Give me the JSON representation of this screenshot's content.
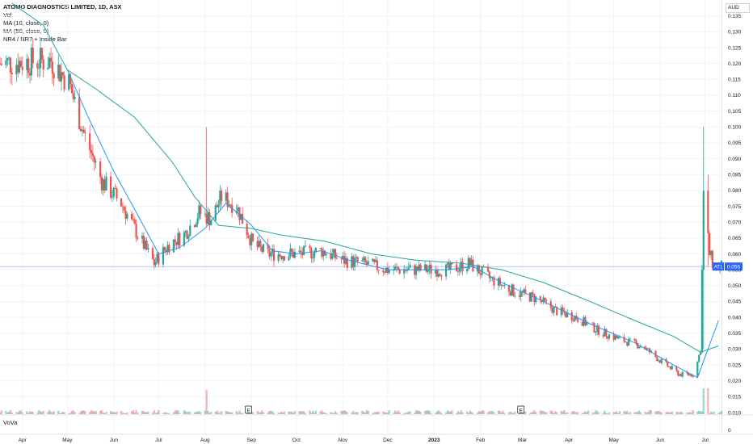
{
  "header": {
    "title": "ATOMO DIAGNOSTICS LIMITED, 1D, ASX",
    "indicators": [
      "Vol",
      "MA (10, close, 0)",
      "MA (50, close, 0)",
      "NR4 / NR7 + Inside Bar"
    ],
    "currency": "AUD"
  },
  "lower_pane": {
    "label": "VoVa",
    "tick": "0"
  },
  "price_tag": {
    "symbol": "AT1",
    "price": "0.056"
  },
  "colors": {
    "up": "#26a69a",
    "down": "#ef5350",
    "ma10": "#2196f3",
    "ma50": "#26a69a",
    "hline": "#b8bff8",
    "grid": "#f0f3fa",
    "axis_text": "#131722",
    "tag": "#2962ff"
  },
  "chart_data": {
    "type": "candlestick",
    "title": "ATOMO DIAGNOSTICS LIMITED, 1D, ASX",
    "ylim": [
      0.0095,
      0.14
    ],
    "yticks": [
      "0.135",
      "0.130",
      "0.125",
      "0.120",
      "0.115",
      "0.110",
      "0.105",
      "0.100",
      "0.095",
      "0.090",
      "0.085",
      "0.080",
      "0.075",
      "0.070",
      "0.065",
      "0.060",
      "0.055",
      "0.050",
      "0.045",
      "0.040",
      "0.035",
      "0.030",
      "0.025",
      "0.020",
      "0.015",
      "0.010"
    ],
    "xticks": [
      "Apr",
      "May",
      "Jun",
      "Jul",
      "Aug",
      "Sep",
      "Oct",
      "Nov",
      "Dec",
      "2023",
      "Feb",
      "Mar",
      "Apr",
      "May",
      "Jun",
      "Jul"
    ],
    "xdates": [
      "2022-04-01",
      "2022-05-01",
      "2022-06-01",
      "2022-07-01",
      "2022-08-01",
      "2022-09-01",
      "2022-10-01",
      "2022-11-01",
      "2022-12-01",
      "2023-01-01",
      "2023-02-01",
      "2023-03-01",
      "2023-04-01",
      "2023-05-01",
      "2023-06-01",
      "2023-07-01"
    ],
    "date_range": [
      "2022-03-17",
      "2023-07-12"
    ],
    "earnings_markers": [
      {
        "date": "2022-08-30",
        "label": "E"
      },
      {
        "date": "2023-02-28",
        "label": "E"
      }
    ],
    "horizontal_line": 0.056,
    "last_price": 0.056,
    "close_series": [
      {
        "date": "2022-03-17",
        "close": 0.12
      },
      {
        "date": "2022-04-20",
        "close": 0.121
      },
      {
        "date": "2022-05-02",
        "close": 0.114
      },
      {
        "date": "2022-05-12",
        "close": 0.098
      },
      {
        "date": "2022-05-24",
        "close": 0.083
      },
      {
        "date": "2022-06-06",
        "close": 0.076
      },
      {
        "date": "2022-06-17",
        "close": 0.066
      },
      {
        "date": "2022-06-28",
        "close": 0.057
      },
      {
        "date": "2022-07-08",
        "close": 0.063
      },
      {
        "date": "2022-07-18",
        "close": 0.066
      },
      {
        "date": "2022-07-28",
        "close": 0.073
      },
      {
        "date": "2022-08-05",
        "close": 0.071
      },
      {
        "date": "2022-08-12",
        "close": 0.078
      },
      {
        "date": "2022-08-22",
        "close": 0.075
      },
      {
        "date": "2022-09-02",
        "close": 0.063
      },
      {
        "date": "2022-09-12",
        "close": 0.06
      },
      {
        "date": "2022-10-03",
        "close": 0.06
      },
      {
        "date": "2022-10-18",
        "close": 0.061
      },
      {
        "date": "2022-11-01",
        "close": 0.058
      },
      {
        "date": "2022-11-15",
        "close": 0.057
      },
      {
        "date": "2022-12-01",
        "close": 0.055
      },
      {
        "date": "2022-12-15",
        "close": 0.055
      },
      {
        "date": "2023-01-12",
        "close": 0.055
      },
      {
        "date": "2023-01-24",
        "close": 0.057
      },
      {
        "date": "2023-02-08",
        "close": 0.052
      },
      {
        "date": "2023-02-24",
        "close": 0.048
      },
      {
        "date": "2023-03-10",
        "close": 0.046
      },
      {
        "date": "2023-03-24",
        "close": 0.042
      },
      {
        "date": "2023-04-06",
        "close": 0.04
      },
      {
        "date": "2023-04-20",
        "close": 0.036
      },
      {
        "date": "2023-05-05",
        "close": 0.033
      },
      {
        "date": "2023-05-20",
        "close": 0.031
      },
      {
        "date": "2023-06-02",
        "close": 0.026
      },
      {
        "date": "2023-06-14",
        "close": 0.022
      },
      {
        "date": "2023-06-24",
        "close": 0.022
      },
      {
        "date": "2023-06-28",
        "close": 0.03
      },
      {
        "date": "2023-06-30",
        "close": 0.079
      },
      {
        "date": "2023-07-04",
        "close": 0.06
      },
      {
        "date": "2023-07-07",
        "close": 0.056
      }
    ],
    "spikes": [
      {
        "date": "2022-08-02",
        "high": 0.1,
        "low": 0.075
      },
      {
        "date": "2023-06-30",
        "high": 0.1,
        "low": 0.03
      },
      {
        "date": "2023-07-03",
        "high": 0.085,
        "low": 0.056
      }
    ],
    "series": [
      {
        "name": "MA (10, close, 0)",
        "values": [
          {
            "date": "2022-05-01",
            "value": 0.118
          },
          {
            "date": "2022-05-15",
            "value": 0.103
          },
          {
            "date": "2022-06-01",
            "value": 0.086
          },
          {
            "date": "2022-06-15",
            "value": 0.074
          },
          {
            "date": "2022-07-01",
            "value": 0.06
          },
          {
            "date": "2022-07-15",
            "value": 0.062
          },
          {
            "date": "2022-08-01",
            "value": 0.068
          },
          {
            "date": "2022-08-15",
            "value": 0.076
          },
          {
            "date": "2022-09-01",
            "value": 0.069
          },
          {
            "date": "2022-09-15",
            "value": 0.061
          },
          {
            "date": "2022-10-01",
            "value": 0.06
          },
          {
            "date": "2022-10-18",
            "value": 0.061
          },
          {
            "date": "2022-11-05",
            "value": 0.058
          },
          {
            "date": "2022-12-01",
            "value": 0.055
          },
          {
            "date": "2023-01-10",
            "value": 0.055
          },
          {
            "date": "2023-01-27",
            "value": 0.056
          },
          {
            "date": "2023-02-15",
            "value": 0.051
          },
          {
            "date": "2023-03-15",
            "value": 0.045
          },
          {
            "date": "2023-04-15",
            "value": 0.038
          },
          {
            "date": "2023-05-15",
            "value": 0.032
          },
          {
            "date": "2023-06-10",
            "value": 0.025
          },
          {
            "date": "2023-06-26",
            "value": 0.021
          },
          {
            "date": "2023-07-03",
            "value": 0.03
          },
          {
            "date": "2023-07-10",
            "value": 0.039
          }
        ]
      },
      {
        "name": "MA (50, close, 0)",
        "values": [
          {
            "date": "2022-03-25",
            "value": 0.139
          },
          {
            "date": "2022-04-15",
            "value": 0.132
          },
          {
            "date": "2022-05-01",
            "value": 0.118
          },
          {
            "date": "2022-05-20",
            "value": 0.112
          },
          {
            "date": "2022-06-15",
            "value": 0.103
          },
          {
            "date": "2022-07-10",
            "value": 0.089
          },
          {
            "date": "2022-07-25",
            "value": 0.078
          },
          {
            "date": "2022-08-10",
            "value": 0.069
          },
          {
            "date": "2022-09-01",
            "value": 0.068
          },
          {
            "date": "2022-09-20",
            "value": 0.066
          },
          {
            "date": "2022-10-20",
            "value": 0.064
          },
          {
            "date": "2022-11-20",
            "value": 0.06
          },
          {
            "date": "2022-12-20",
            "value": 0.058
          },
          {
            "date": "2023-01-20",
            "value": 0.057
          },
          {
            "date": "2023-02-15",
            "value": 0.055
          },
          {
            "date": "2023-03-15",
            "value": 0.051
          },
          {
            "date": "2023-04-15",
            "value": 0.045
          },
          {
            "date": "2023-05-15",
            "value": 0.039
          },
          {
            "date": "2023-06-10",
            "value": 0.034
          },
          {
            "date": "2023-06-28",
            "value": 0.029
          },
          {
            "date": "2023-07-10",
            "value": 0.031
          }
        ]
      }
    ]
  }
}
